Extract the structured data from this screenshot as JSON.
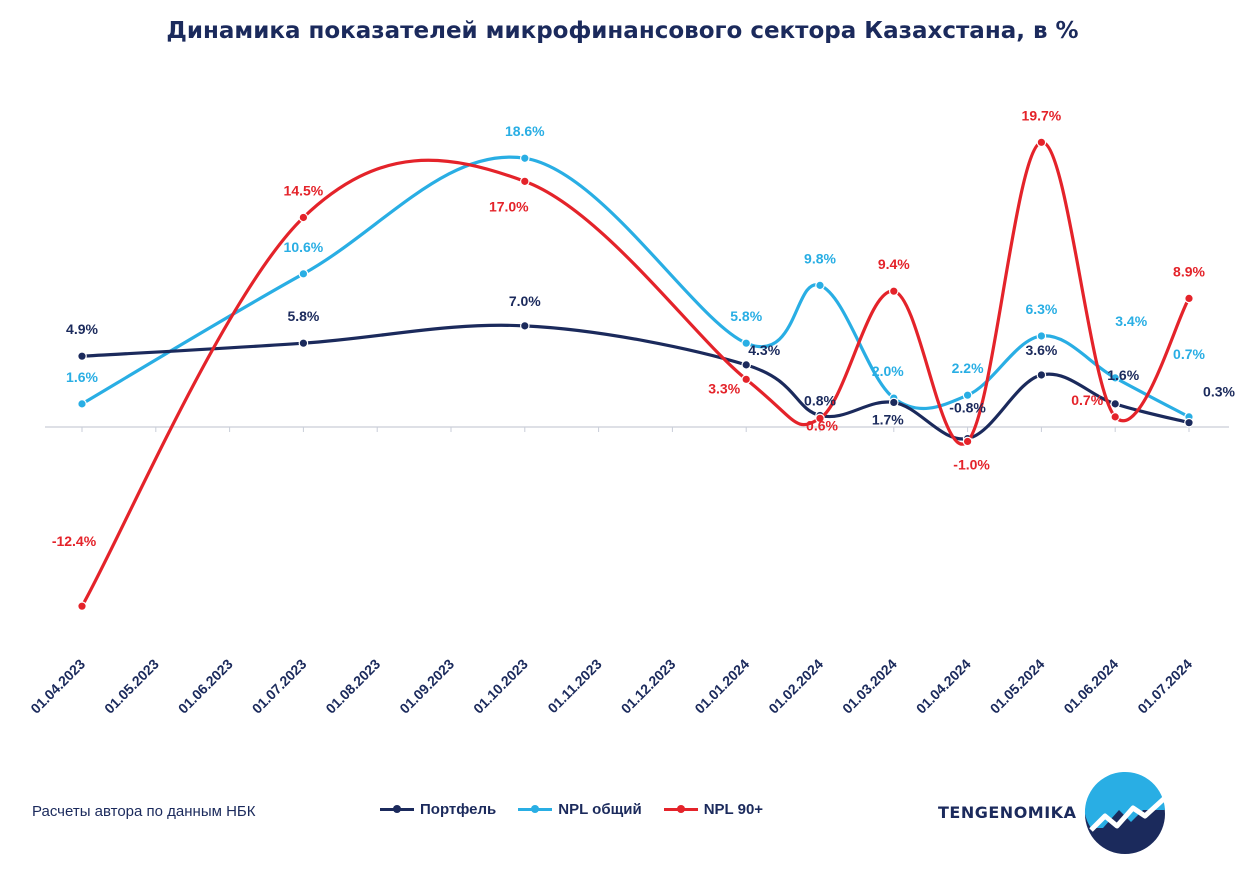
{
  "title": "Динамика показателей микрофинансового сектора Казахстана, в %",
  "source": "Расчеты автора по данным НБК",
  "brand": "TENGENOMIKA",
  "colors": {
    "Портфель": "#1b2a5c",
    "NPL общий": "#29aee4",
    "NPL 90+": "#e4232a"
  },
  "chart_data": {
    "type": "line",
    "title": "Динамика показателей микрофинансового сектора Казахстана, в %",
    "categories": [
      "01.04.2023",
      "01.05.2023",
      "01.06.2023",
      "01.07.2023",
      "01.08.2023",
      "01.09.2023",
      "01.10.2023",
      "01.11.2023",
      "01.12.2023",
      "01.01.2024",
      "01.02.2024",
      "01.03.2024",
      "01.04.2024",
      "01.05.2024",
      "01.06.2024",
      "01.07.2024"
    ],
    "ylim": [
      -15,
      22
    ],
    "grid": false,
    "legend_position": "bottom",
    "series": [
      {
        "name": "Портфель",
        "points": [
          {
            "x": "01.04.2023",
            "y": 4.9
          },
          {
            "x": "01.07.2023",
            "y": 5.8
          },
          {
            "x": "01.10.2023",
            "y": 7.0
          },
          {
            "x": "01.01.2024",
            "y": 4.3
          },
          {
            "x": "01.02.2024",
            "y": 0.8
          },
          {
            "x": "01.03.2024",
            "y": 1.7
          },
          {
            "x": "01.04.2024",
            "y": -0.8
          },
          {
            "x": "01.05.2024",
            "y": 3.6
          },
          {
            "x": "01.06.2024",
            "y": 1.6
          },
          {
            "x": "01.07.2024",
            "y": 0.3
          }
        ],
        "labels": [
          "4.9%",
          "5.8%",
          "7.0%",
          "4.3%",
          "0.8%",
          "1.7%",
          "-0.8%",
          "3.6%",
          "1.6%",
          "0.3%"
        ]
      },
      {
        "name": "NPL общий",
        "points": [
          {
            "x": "01.04.2023",
            "y": 1.6
          },
          {
            "x": "01.07.2023",
            "y": 10.6
          },
          {
            "x": "01.10.2023",
            "y": 18.6
          },
          {
            "x": "01.01.2024",
            "y": 5.8
          },
          {
            "x": "01.02.2024",
            "y": 9.8
          },
          {
            "x": "01.03.2024",
            "y": 2.0
          },
          {
            "x": "01.04.2024",
            "y": 2.2
          },
          {
            "x": "01.05.2024",
            "y": 6.3
          },
          {
            "x": "01.06.2024",
            "y": 3.4
          },
          {
            "x": "01.07.2024",
            "y": 0.7
          }
        ],
        "labels": [
          "1.6%",
          "10.6%",
          "18.6%",
          "5.8%",
          "9.8%",
          "2.0%",
          "2.2%",
          "6.3%",
          "3.4%",
          "0.7%"
        ]
      },
      {
        "name": "NPL 90+",
        "points": [
          {
            "x": "01.04.2023",
            "y": -12.4
          },
          {
            "x": "01.07.2023",
            "y": 14.5
          },
          {
            "x": "01.10.2023",
            "y": 17.0
          },
          {
            "x": "01.01.2024",
            "y": 3.3
          },
          {
            "x": "01.02.2024",
            "y": 0.6
          },
          {
            "x": "01.03.2024",
            "y": 9.4
          },
          {
            "x": "01.04.2024",
            "y": -1.0
          },
          {
            "x": "01.05.2024",
            "y": 19.7
          },
          {
            "x": "01.06.2024",
            "y": 0.7
          },
          {
            "x": "01.07.2024",
            "y": 8.9
          }
        ],
        "labels": [
          "-12.4%",
          "14.5%",
          "17.0%",
          "3.3%",
          "0.6%",
          "9.4%",
          "-1.0%",
          "19.7%",
          "0.7%",
          "8.9%"
        ]
      }
    ]
  }
}
